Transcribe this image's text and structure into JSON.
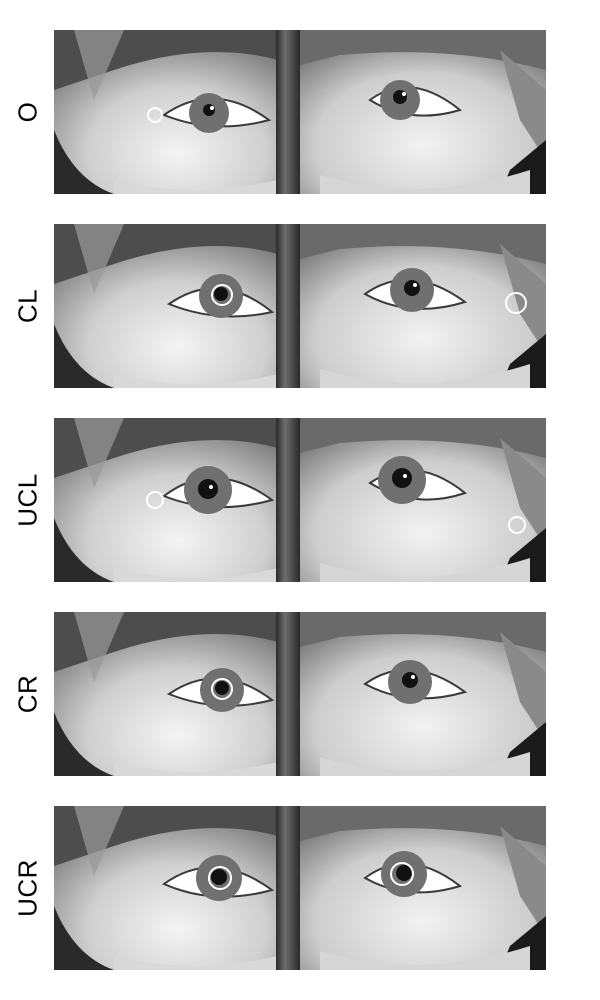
{
  "figure": {
    "rows": [
      {
        "label": "O",
        "left_marker": true,
        "right_marker": true
      },
      {
        "label": "CL",
        "left_marker": true,
        "right_marker": true
      },
      {
        "label": "UCL",
        "left_marker": true,
        "right_marker": true
      },
      {
        "label": "CR",
        "left_marker": true,
        "right_marker": false
      },
      {
        "label": "UCR",
        "left_marker": true,
        "right_marker": true
      }
    ]
  },
  "colors": {
    "skin_light": "#e6e6e6",
    "skin_mid": "#b8b8b8",
    "iris": "#6e6e6e",
    "pupil": "#111111",
    "marker": "#ffffff",
    "label_text": "#000000"
  }
}
